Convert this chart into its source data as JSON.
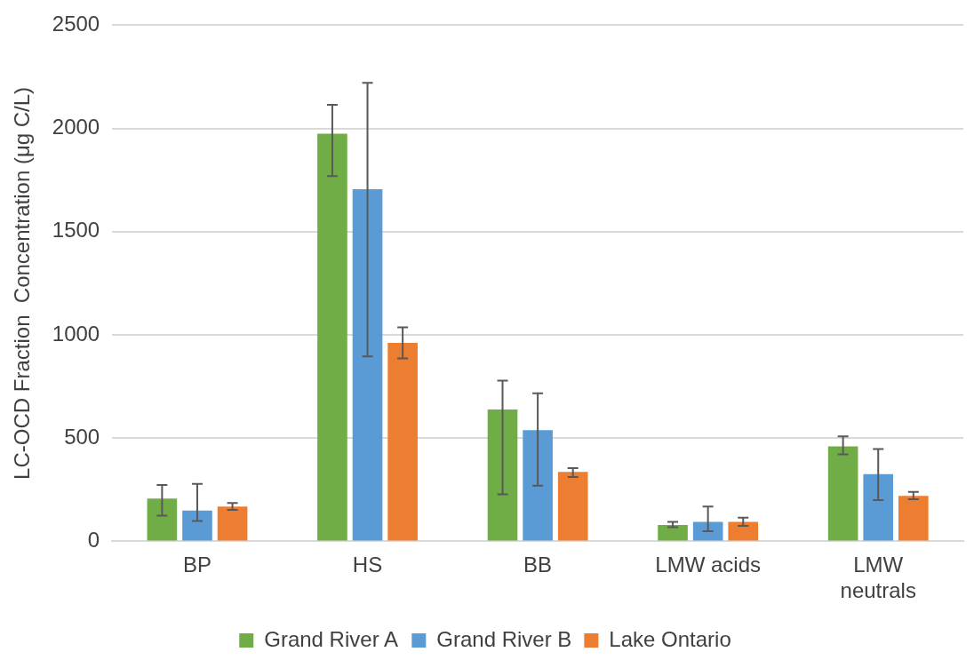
{
  "chart_data": {
    "type": "bar",
    "ylabel": "LC-OCD Fraction  Concentration (μg C/L)",
    "categories": [
      "BP",
      "HS",
      "BB",
      "LMW acids",
      "LMW neutrals"
    ],
    "series": [
      {
        "name": "Grand River A",
        "color": "#70ad47",
        "values": [
          207,
          1975,
          639,
          79,
          460
        ],
        "errors": [
          [
            124,
            273
          ],
          [
            1769,
            2114
          ],
          [
            228,
            778
          ],
          [
            68,
            94
          ],
          [
            421,
            508
          ]
        ]
      },
      {
        "name": "Grand River B",
        "color": "#5b9bd5",
        "values": [
          149,
          1706,
          538,
          94,
          325
        ],
        "errors": [
          [
            99,
            278
          ],
          [
            896,
            2221
          ],
          [
            270,
            717
          ],
          [
            49,
            168
          ],
          [
            200,
            447
          ]
        ]
      },
      {
        "name": "Lake Ontario",
        "color": "#ed7d31",
        "values": [
          168,
          961,
          336,
          94,
          220
        ],
        "errors": [
          [
            152,
            186
          ],
          [
            886,
            1037
          ],
          [
            312,
            355
          ],
          [
            75,
            115
          ],
          [
            204,
            239
          ]
        ]
      }
    ],
    "ylim": [
      0,
      2500
    ],
    "yticks": [
      0,
      500,
      1000,
      1500,
      2000,
      2500
    ],
    "grid": "y",
    "legend": "bottom"
  }
}
